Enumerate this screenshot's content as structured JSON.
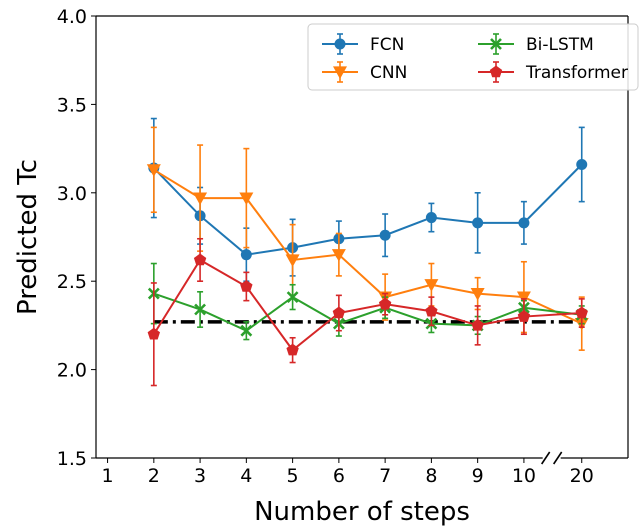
{
  "chart_data": {
    "type": "line",
    "xlabel": "Number of steps",
    "ylabel": "Predicted Tc",
    "ylim": [
      1.5,
      4.0
    ],
    "x_axis_break_between": [
      10,
      20
    ],
    "x_ticks": [
      "1",
      "2",
      "3",
      "4",
      "5",
      "6",
      "7",
      "8",
      "9",
      "10",
      "20"
    ],
    "y_ticks": [
      "1.5",
      "2.0",
      "2.5",
      "3.0",
      "3.5",
      "4.0"
    ],
    "x": [
      2,
      3,
      4,
      5,
      6,
      7,
      8,
      9,
      10,
      20
    ],
    "reference_line": {
      "y": 2.27,
      "style": "dash-dot",
      "color": "#000000"
    },
    "legend_position": "top-right",
    "series": [
      {
        "name": "FCN",
        "color": "#1f77b4",
        "marker": "circle",
        "values": [
          3.14,
          2.87,
          2.65,
          2.69,
          2.74,
          2.76,
          2.86,
          2.83,
          2.83,
          3.16
        ],
        "errors": [
          0.28,
          0.16,
          0.15,
          0.16,
          0.1,
          0.12,
          0.08,
          0.17,
          0.12,
          0.21
        ]
      },
      {
        "name": "CNN",
        "color": "#ff7f0e",
        "marker": "triangle-down",
        "values": [
          3.13,
          2.97,
          2.97,
          2.62,
          2.65,
          2.41,
          2.48,
          2.43,
          2.41,
          2.26
        ],
        "errors": [
          0.24,
          0.3,
          0.28,
          0.2,
          0.12,
          0.13,
          0.12,
          0.09,
          0.2,
          0.15
        ]
      },
      {
        "name": "Bi-LSTM",
        "color": "#2ca02c",
        "marker": "x",
        "values": [
          2.43,
          2.34,
          2.22,
          2.41,
          2.26,
          2.35,
          2.26,
          2.25,
          2.35,
          2.31
        ],
        "errors": [
          0.17,
          0.1,
          0.05,
          0.07,
          0.07,
          0.06,
          0.05,
          0.05,
          0.04,
          0.05
        ]
      },
      {
        "name": "Transformer",
        "color": "#d62728",
        "marker": "pentagon",
        "values": [
          2.2,
          2.62,
          2.47,
          2.11,
          2.32,
          2.37,
          2.33,
          2.25,
          2.3,
          2.32
        ],
        "errors": [
          0.29,
          0.12,
          0.08,
          0.07,
          0.1,
          0.06,
          0.08,
          0.11,
          0.1,
          0.08
        ]
      }
    ]
  }
}
